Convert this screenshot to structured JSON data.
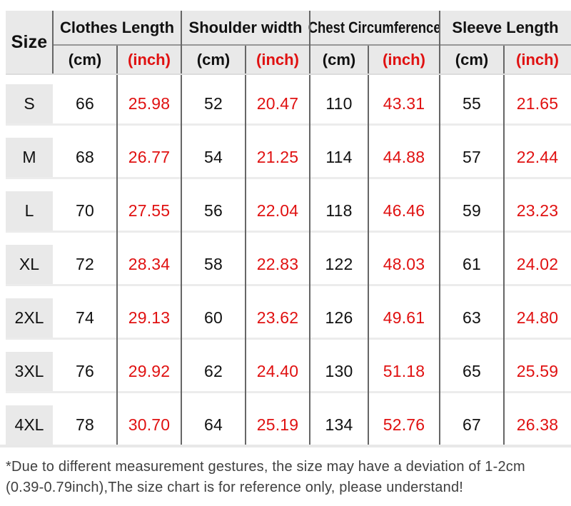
{
  "chart_data": {
    "type": "table",
    "corner_header": "Size",
    "column_groups": [
      "Clothes Length",
      "Shoulder width",
      "Chest Circumference",
      "Sleeve Length"
    ],
    "unit_labels": {
      "cm": "(cm)",
      "inch": "(inch)"
    },
    "rows": [
      {
        "size": "S",
        "values": [
          "66",
          "25.98",
          "52",
          "20.47",
          "110",
          "43.31",
          "55",
          "21.65"
        ]
      },
      {
        "size": "M",
        "values": [
          "68",
          "26.77",
          "54",
          "21.25",
          "114",
          "44.88",
          "57",
          "22.44"
        ]
      },
      {
        "size": "L",
        "values": [
          "70",
          "27.55",
          "56",
          "22.04",
          "118",
          "46.46",
          "59",
          "23.23"
        ]
      },
      {
        "size": "XL",
        "values": [
          "72",
          "28.34",
          "58",
          "22.83",
          "122",
          "48.03",
          "61",
          "24.02"
        ]
      },
      {
        "size": "2XL",
        "values": [
          "74",
          "29.13",
          "60",
          "23.62",
          "126",
          "49.61",
          "63",
          "24.80"
        ]
      },
      {
        "size": "3XL",
        "values": [
          "76",
          "29.92",
          "62",
          "24.40",
          "130",
          "51.18",
          "65",
          "25.59"
        ]
      },
      {
        "size": "4XL",
        "values": [
          "78",
          "30.70",
          "64",
          "25.19",
          "134",
          "52.76",
          "67",
          "26.38"
        ]
      }
    ],
    "footnote_line1": "*Due to different measurement gestures, the size may have a deviation of 1-2cm",
    "footnote_line2": "(0.39-0.79inch),The size chart is for reference only, please understand!"
  },
  "colors": {
    "accent_red": "#e01111",
    "header_bg": "#e9e9e9",
    "grid_line": "#666666",
    "text_black": "#111111",
    "footnote_gray": "#3f3f3f"
  }
}
